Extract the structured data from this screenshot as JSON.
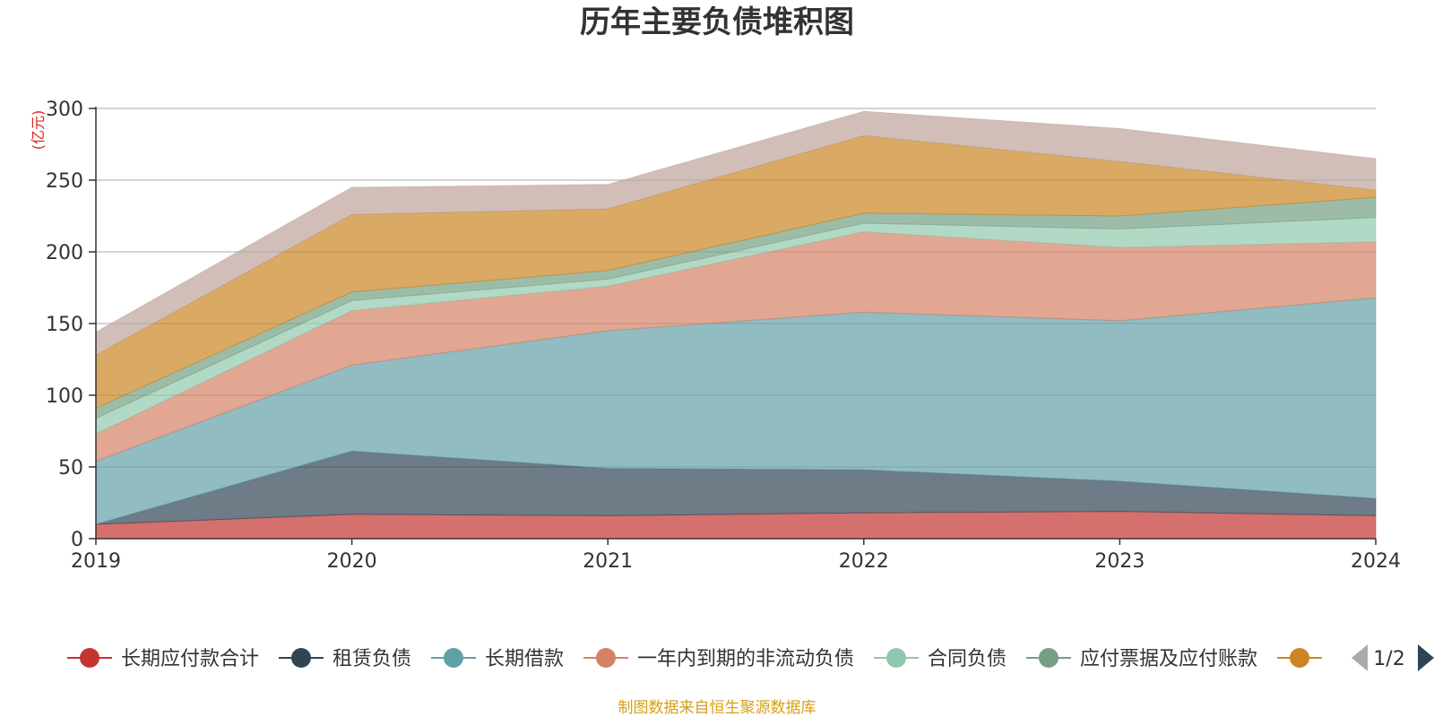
{
  "colors": {
    "长期应付款合计": "#c23531",
    "租赁负债": "#2f4554",
    "长期借款": "#61a0a8",
    "一年内到期的非流动负债": "#d48265",
    "合同负债": "#91c7ae",
    "应付票据及应付账款": "#749f83",
    "hidden_series_1": "#ca8622",
    "hidden_series_2": "#bda29a"
  },
  "legend": {
    "page": "1/2",
    "items": [
      "长期应付款合计",
      "租赁负债",
      "长期借款",
      "一年内到期的非流动负债",
      "合同负债",
      "应付票据及应付账款",
      ""
    ]
  },
  "source_note": "制图数据来自恒生聚源数据库",
  "chart_data": {
    "type": "area",
    "stacked": true,
    "title": "历年主要负债堆积图",
    "ylabel": "(亿元)",
    "ylim": [
      0,
      300
    ],
    "yticks": [
      0,
      50,
      100,
      150,
      200,
      250,
      300
    ],
    "x": [
      "2019",
      "2020",
      "2021",
      "2022",
      "2023",
      "2024"
    ],
    "grid": true,
    "legend_position": "bottom",
    "series": [
      {
        "name": "长期应付款合计",
        "values": [
          10,
          17,
          16,
          18,
          19,
          16
        ]
      },
      {
        "name": "租赁负债",
        "values": [
          0,
          44,
          33,
          30,
          21,
          12
        ]
      },
      {
        "name": "长期借款",
        "values": [
          44,
          60,
          96,
          110,
          112,
          140
        ]
      },
      {
        "name": "一年内到期的非流动负债",
        "values": [
          19,
          38,
          31,
          56,
          51,
          39
        ]
      },
      {
        "name": "合同负债",
        "values": [
          11,
          7,
          5,
          6,
          13,
          17
        ]
      },
      {
        "name": "应付票据及应付账款",
        "values": [
          7,
          6,
          6,
          7,
          9,
          14
        ]
      },
      {
        "name": "",
        "values": [
          37,
          54,
          43,
          54,
          38,
          5
        ]
      },
      {
        "name": "",
        "values": [
          16,
          19,
          17,
          17,
          23,
          22
        ]
      }
    ]
  }
}
